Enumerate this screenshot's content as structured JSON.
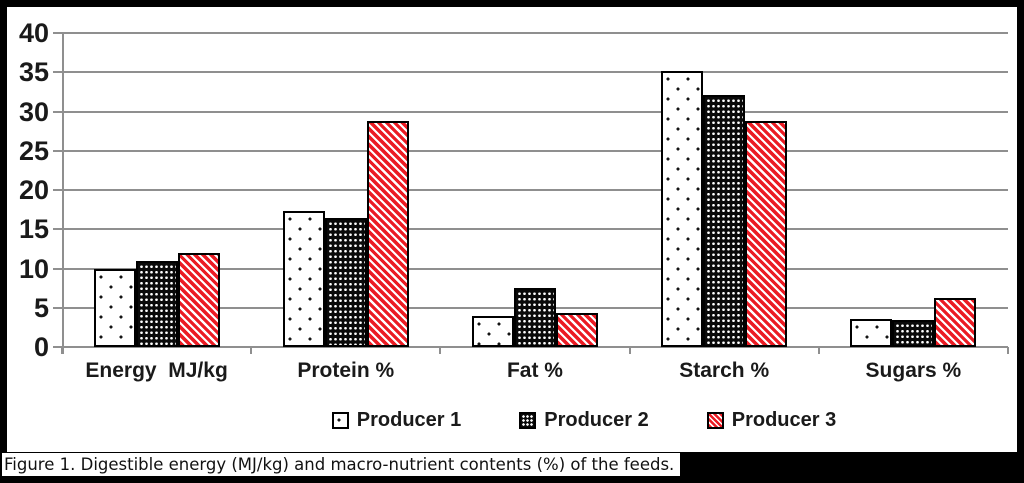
{
  "figure": {
    "caption": "Figure 1. Digestible energy (MJ/kg) and macro-nutrient contents (%) of the feeds."
  },
  "chart_data": {
    "type": "bar",
    "title": "",
    "xlabel": "",
    "ylabel": "",
    "categories": [
      "Energy  MJ/kg",
      "Protein %",
      "Fat %",
      "Starch %",
      "Sugars %"
    ],
    "series": [
      {
        "name": "Producer 1",
        "pattern": "white-dots",
        "values": [
          9.9,
          17.3,
          3.9,
          35.2,
          3.6
        ]
      },
      {
        "name": "Producer 2",
        "pattern": "black-checker",
        "values": [
          11.0,
          16.4,
          7.5,
          32.1,
          3.4
        ]
      },
      {
        "name": "Producer 3",
        "pattern": "red-diagonal",
        "values": [
          12.0,
          28.8,
          4.3,
          28.8,
          6.2
        ]
      }
    ],
    "ylim": [
      0,
      40
    ],
    "ytick_step": 5,
    "yticks": [
      0,
      5,
      10,
      15,
      20,
      25,
      30,
      35,
      40
    ],
    "grid": true,
    "legend_position": "bottom",
    "colors": {
      "producer3_stripe_red": "#eb1c24",
      "gridline_gray": "#8f8f8f",
      "text_black": "#1a1a1a",
      "frame_black": "#000000"
    }
  }
}
